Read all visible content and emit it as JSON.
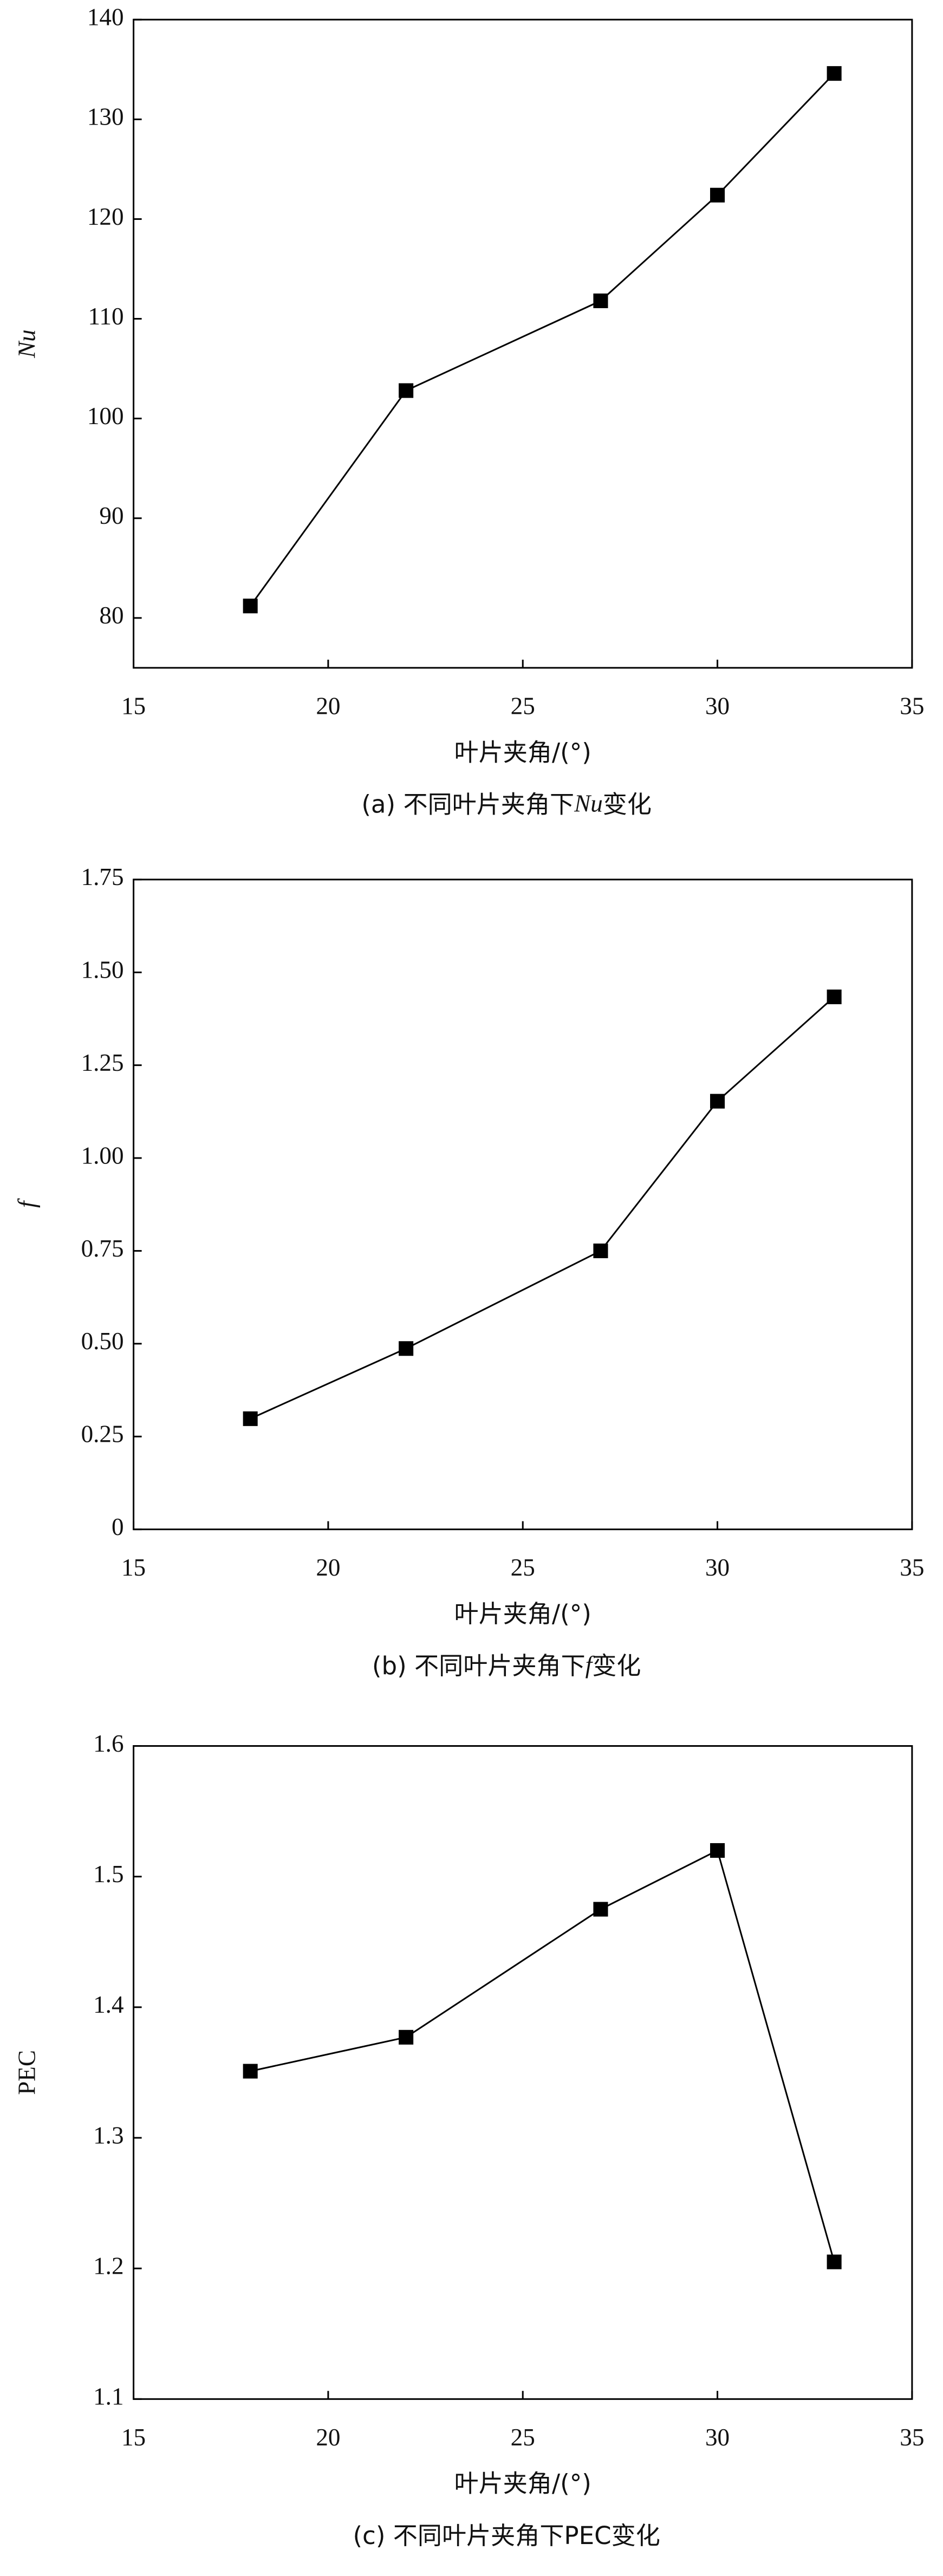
{
  "chart_data": [
    {
      "type": "line",
      "xlabel": "叶片夹角/(°)",
      "ylabel": "Nu",
      "caption": [
        "(a) 不同叶片夹角下",
        "Nu",
        "变化"
      ],
      "x": [
        18,
        22,
        27,
        30,
        33
      ],
      "values": [
        81.2,
        102.8,
        111.8,
        122.4,
        134.6
      ],
      "color": "#000000",
      "xlim": [
        15,
        35
      ],
      "xticks": [
        15,
        20,
        25,
        30,
        35
      ],
      "ylim": [
        75,
        140
      ],
      "yticks": [
        80,
        90,
        100,
        110,
        120,
        130,
        140
      ]
    },
    {
      "type": "line",
      "xlabel": "叶片夹角/(°)",
      "ylabel": "f",
      "caption": [
        "(b) 不同叶片夹角下",
        "f",
        "变化"
      ],
      "x": [
        18,
        22,
        27,
        30,
        33
      ],
      "values": [
        0.298,
        0.487,
        0.75,
        1.153,
        1.434
      ],
      "color": "#000000",
      "xlim": [
        15,
        35
      ],
      "xticks": [
        15,
        20,
        25,
        30,
        35
      ],
      "ylim": [
        0,
        1.75
      ],
      "yticks": [
        0,
        0.25,
        {
          "value": 0.5,
          "label": "0.50"
        },
        0.75,
        {
          "value": 1,
          "label": "1.00"
        },
        1.25,
        {
          "value": 1.5,
          "label": "1.50"
        },
        1.75
      ]
    },
    {
      "type": "line",
      "xlabel": "叶片夹角/(°)",
      "ylabel": "PEC",
      "caption": [
        "(c) 不同叶片夹角下",
        "PEC",
        "变化"
      ],
      "x": [
        18,
        22,
        27,
        30,
        33
      ],
      "values": [
        1.351,
        1.377,
        1.475,
        1.52,
        1.205
      ],
      "color": "#000000",
      "xlim": [
        15,
        35
      ],
      "xticks": [
        15,
        20,
        25,
        30,
        35
      ],
      "ylim": [
        1.1,
        1.6
      ],
      "yticks": [
        1.1,
        1.2,
        1.3,
        1.4,
        1.5,
        1.6
      ]
    }
  ]
}
